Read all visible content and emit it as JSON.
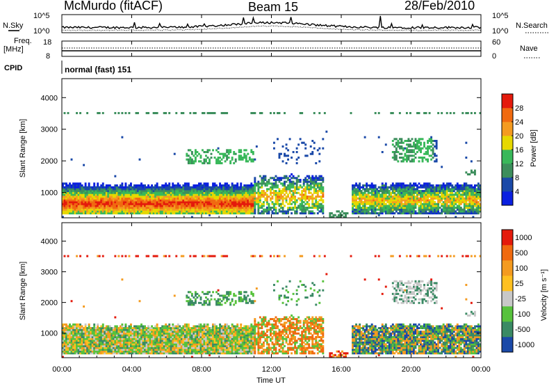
{
  "header": {
    "station": "McMurdo (fitACF)",
    "beam": "Beam 15",
    "date": "28/Feb/2010"
  },
  "top_panel": {
    "left_label": "N.Sky",
    "right_label": "N.Search",
    "left_ticks": [
      "10^5",
      "10^0"
    ],
    "right_ticks": [
      "10^5",
      "10^0"
    ]
  },
  "freq_panel": {
    "left_label_line1": "Freq.",
    "left_label_line2": "[MHz]",
    "right_label": "Nave",
    "left_ticks": [
      "18",
      "8"
    ],
    "right_ticks": [
      "60",
      "0"
    ]
  },
  "cpid": {
    "label": "CPID",
    "value": "normal (fast) 151"
  },
  "colors": {
    "power": [
      "#0a1fe0",
      "#1a49a8",
      "#3c8e5c",
      "#39b85a",
      "#e6d800",
      "#f49b20",
      "#f06a10",
      "#e41a0c"
    ],
    "velocity": [
      "#e41a0c",
      "#f06a10",
      "#f49b20",
      "#ffc020",
      "#c8c8c8",
      "#57c23c",
      "#3a8a64",
      "#1a49a8"
    ]
  },
  "chart_data": [
    {
      "type": "heatmap",
      "name": "power",
      "ylabel": "Slant Range [km]",
      "yticks": [
        1000,
        2000,
        3000,
        4000
      ],
      "ylim": [
        200,
        4600
      ],
      "xlim": [
        0,
        24
      ],
      "colorbar": {
        "label": "Power [dB]",
        "ticks": [
          "4",
          "8",
          "12",
          "16",
          "20",
          "24",
          "28"
        ]
      }
    },
    {
      "type": "heatmap",
      "name": "velocity",
      "ylabel": "Slant Range [km]",
      "yticks": [
        1000,
        2000,
        3000,
        4000
      ],
      "ylim": [
        200,
        4600
      ],
      "xlim": [
        0,
        24
      ],
      "xlabel": "Time UT",
      "xticks": [
        "00:00",
        "04:00",
        "08:00",
        "12:00",
        "16:00",
        "20:00",
        "00:00"
      ],
      "colorbar": {
        "label": "Velocity [m s⁻¹]",
        "ticks": [
          "1000",
          "500",
          "100",
          "25",
          "-25",
          "-100",
          "-500",
          "-1000"
        ]
      }
    }
  ]
}
